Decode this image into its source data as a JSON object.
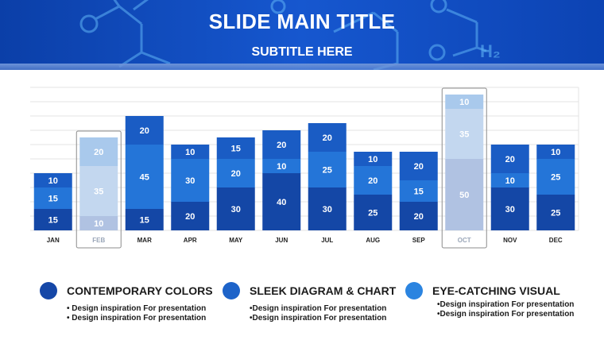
{
  "slide": {
    "title": "SLIDE MAIN TITLE",
    "subtitle": "SUBTITLE HERE",
    "header_glyph": "H₂"
  },
  "chart_data": {
    "type": "bar",
    "stacked": true,
    "categories": [
      "JAN",
      "FEB",
      "MAR",
      "APR",
      "MAY",
      "JUN",
      "JUL",
      "AUG",
      "SEP",
      "OCT",
      "NOV",
      "DEC"
    ],
    "series": [
      {
        "values": [
          15,
          10,
          15,
          20,
          30,
          40,
          30,
          25,
          20,
          50,
          30,
          25
        ],
        "color": "#1447a6"
      },
      {
        "values": [
          15,
          35,
          45,
          30,
          20,
          10,
          25,
          20,
          15,
          35,
          10,
          25
        ],
        "color": "#2475d8"
      },
      {
        "values": [
          10,
          20,
          20,
          10,
          15,
          20,
          20,
          10,
          20,
          10,
          20,
          10
        ],
        "color": "#1a5cc4"
      }
    ],
    "highlighted_categories": [
      "FEB",
      "OCT"
    ],
    "ylim": [
      0,
      100
    ],
    "grid": true,
    "xlabel": "",
    "ylabel": ""
  },
  "legend": [
    {
      "title": "CONTEMPORARY COLORS",
      "color": "#1547a7",
      "lines": [
        "• Design inspiration For presentation",
        "• Design inspiration For presentation"
      ]
    },
    {
      "title": "SLEEK DIAGRAM & CHART",
      "color": "#1d63c9",
      "lines": [
        "•Design inspiration For presentation",
        "•Design inspiration For presentation"
      ]
    },
    {
      "title": "EYE-CATCHING VISUAL",
      "color": "#2b84e0",
      "lines": [
        "•Design inspiration For presentation",
        "•Design inspiration For presentation"
      ]
    }
  ]
}
